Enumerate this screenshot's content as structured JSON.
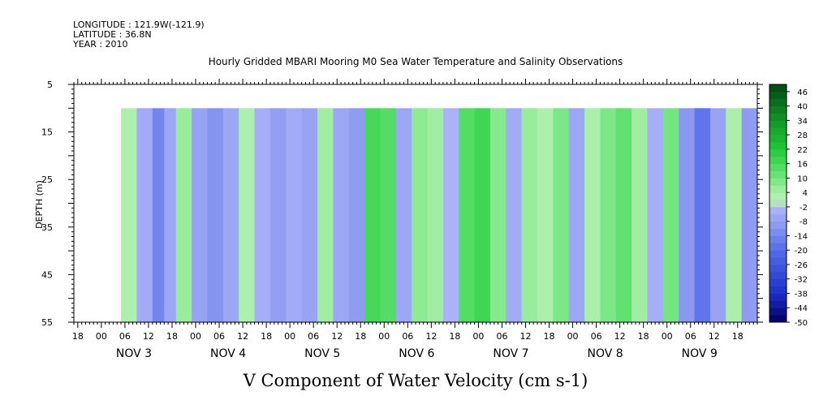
{
  "header": {
    "longitude": "LONGITUDE : 121.9W(-121.9)",
    "latitude": "LATITUDE : 36.8N",
    "year": "YEAR : 2010"
  },
  "chart_data": {
    "type": "heatmap",
    "title": "Hourly Gridded MBARI Mooring M0 Sea Water Temperature and Salinity Observations",
    "xlabel": "V Component of Water Velocity (cm s-1)",
    "ylabel": "DEPTH (m)",
    "y_range": [
      5,
      55
    ],
    "y_ticks": [
      5,
      15,
      25,
      35,
      45,
      55
    ],
    "y_inverted": true,
    "data_depth_range": [
      10,
      55
    ],
    "x_start": "2010-11-02 17:00",
    "x_end": "2010-11-09 23:00",
    "data_start": "2010-11-03 05:00",
    "hour_ticks": [
      "00",
      "06",
      "12",
      "18"
    ],
    "day_labels": [
      "NOV 3",
      "NOV 4",
      "NOV 5",
      "NOV 6",
      "NOV 7",
      "NOV 8",
      "NOV 9"
    ],
    "colorbar": {
      "ticks": [
        46,
        40,
        34,
        28,
        22,
        16,
        10,
        4,
        -2,
        -8,
        -14,
        -20,
        -26,
        -32,
        -38,
        -44,
        -50
      ],
      "range": [
        -50,
        49
      ]
    },
    "v_bands_cm_s": [
      {
        "t": "2010-11-03 05:00",
        "v": 3
      },
      {
        "t": "2010-11-03 09:00",
        "v": -5
      },
      {
        "t": "2010-11-03 13:00",
        "v": -14
      },
      {
        "t": "2010-11-03 16:00",
        "v": -6
      },
      {
        "t": "2010-11-03 19:00",
        "v": 6
      },
      {
        "t": "2010-11-03 23:00",
        "v": -7
      },
      {
        "t": "2010-11-04 03:00",
        "v": -11
      },
      {
        "t": "2010-11-04 07:00",
        "v": -6
      },
      {
        "t": "2010-11-04 11:00",
        "v": 3
      },
      {
        "t": "2010-11-04 15:00",
        "v": -4
      },
      {
        "t": "2010-11-04 19:00",
        "v": -8
      },
      {
        "t": "2010-11-04 23:00",
        "v": -5
      },
      {
        "t": "2010-11-05 03:00",
        "v": -7
      },
      {
        "t": "2010-11-05 07:00",
        "v": 5
      },
      {
        "t": "2010-11-05 11:00",
        "v": -6
      },
      {
        "t": "2010-11-05 15:00",
        "v": -9
      },
      {
        "t": "2010-11-05 19:00",
        "v": 16
      },
      {
        "t": "2010-11-05 23:00",
        "v": 14
      },
      {
        "t": "2010-11-06 03:00",
        "v": -6
      },
      {
        "t": "2010-11-06 07:00",
        "v": 7
      },
      {
        "t": "2010-11-06 11:00",
        "v": 5
      },
      {
        "t": "2010-11-06 15:00",
        "v": -3
      },
      {
        "t": "2010-11-06 19:00",
        "v": 14
      },
      {
        "t": "2010-11-06 23:00",
        "v": 17
      },
      {
        "t": "2010-11-07 03:00",
        "v": 8
      },
      {
        "t": "2010-11-07 07:00",
        "v": -5
      },
      {
        "t": "2010-11-07 11:00",
        "v": 6
      },
      {
        "t": "2010-11-07 15:00",
        "v": 3
      },
      {
        "t": "2010-11-07 19:00",
        "v": 9
      },
      {
        "t": "2010-11-07 23:00",
        "v": -6
      },
      {
        "t": "2010-11-08 03:00",
        "v": 4
      },
      {
        "t": "2010-11-08 07:00",
        "v": 9
      },
      {
        "t": "2010-11-08 11:00",
        "v": 12
      },
      {
        "t": "2010-11-08 15:00",
        "v": 5
      },
      {
        "t": "2010-11-08 19:00",
        "v": -4
      },
      {
        "t": "2010-11-08 23:00",
        "v": 10
      },
      {
        "t": "2010-11-09 03:00",
        "v": -10
      },
      {
        "t": "2010-11-09 07:00",
        "v": -18
      },
      {
        "t": "2010-11-09 11:00",
        "v": -7
      },
      {
        "t": "2010-11-09 15:00",
        "v": 4
      },
      {
        "t": "2010-11-09 19:00",
        "v": -9
      },
      {
        "t": "2010-11-09 23:00",
        "v": -14
      }
    ]
  }
}
